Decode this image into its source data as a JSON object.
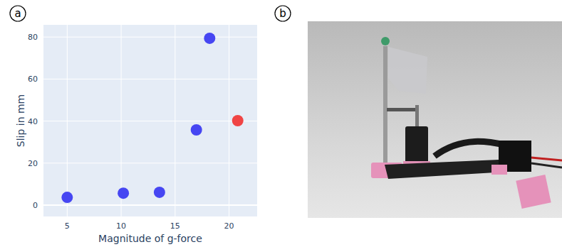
{
  "chart_data": {
    "type": "scatter",
    "panel_label": "a",
    "x_label": "Magnitude of g-force",
    "y_label": "Slip in mm",
    "x": [
      5,
      10.2,
      13.55,
      16.97,
      18.2,
      20.8
    ],
    "values": [
      3.7,
      5.7,
      6.1,
      35.8,
      79.4,
      40.2
    ],
    "colors": [
      "#4646f2",
      "#4646f2",
      "#4646f2",
      "#4646f2",
      "#4646f2",
      "#f04444"
    ],
    "marker": "circle",
    "xlim": [
      2.8,
      22.6
    ],
    "ylim": [
      -5.4,
      85.8
    ],
    "xticks": [
      5,
      10,
      15,
      20
    ],
    "yticks": [
      0,
      20,
      40,
      60,
      80
    ],
    "grid": true
  },
  "photo": {
    "panel_label": "b"
  }
}
